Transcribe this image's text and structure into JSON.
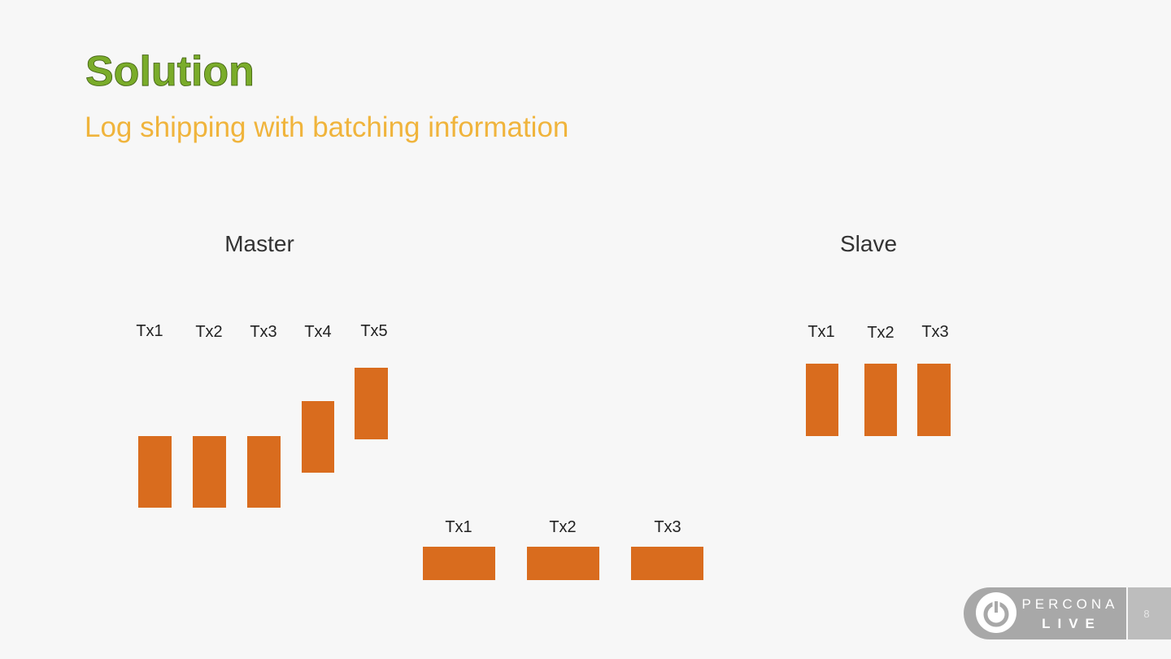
{
  "header": {
    "title": "Solution",
    "subtitle": "Log shipping with batching information"
  },
  "master": {
    "label": "Master",
    "transactions": [
      "Tx1",
      "Tx2",
      "Tx3",
      "Tx4",
      "Tx5"
    ]
  },
  "log": {
    "transactions": [
      "Tx1",
      "Tx2",
      "Tx3"
    ]
  },
  "slave": {
    "label": "Slave",
    "transactions": [
      "Tx1",
      "Tx2",
      "Tx3"
    ]
  },
  "footer": {
    "logo_top": "PERCONA",
    "logo_bottom": "LIVE",
    "page_number": "8"
  }
}
